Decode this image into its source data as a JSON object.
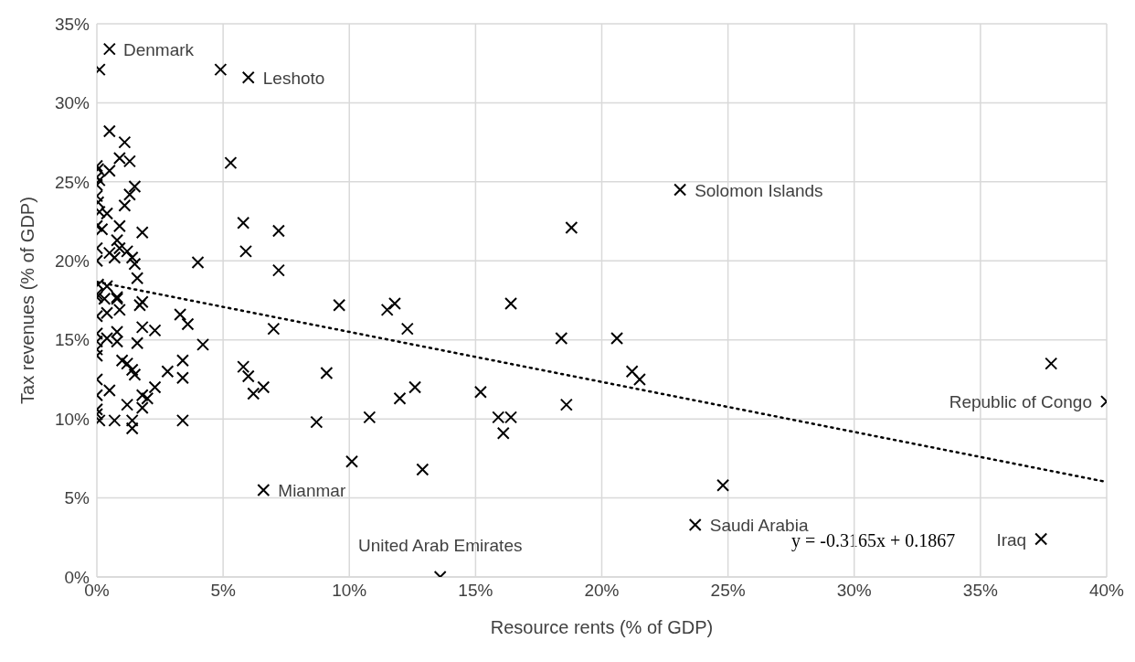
{
  "chart_data": {
    "type": "scatter",
    "xlabel": "Resource rents (% of GDP)",
    "ylabel": "Tax revenues (% of GDP)",
    "xlim": [
      0,
      40
    ],
    "ylim": [
      0,
      35
    ],
    "xticks": [
      {
        "value": 0,
        "label": "0%"
      },
      {
        "value": 5,
        "label": "5%"
      },
      {
        "value": 10,
        "label": "10%"
      },
      {
        "value": 15,
        "label": "15%"
      },
      {
        "value": 20,
        "label": "20%"
      },
      {
        "value": 25,
        "label": "25%"
      },
      {
        "value": 30,
        "label": "30%"
      },
      {
        "value": 35,
        "label": "35%"
      },
      {
        "value": 40,
        "label": "40%"
      }
    ],
    "yticks": [
      {
        "value": 0,
        "label": "0%"
      },
      {
        "value": 5,
        "label": "5%"
      },
      {
        "value": 10,
        "label": "10%"
      },
      {
        "value": 15,
        "label": "15%"
      },
      {
        "value": 20,
        "label": "20%"
      },
      {
        "value": 25,
        "label": "25%"
      },
      {
        "value": 30,
        "label": "30%"
      },
      {
        "value": 35,
        "label": "35%"
      }
    ],
    "grid": true,
    "series": [
      {
        "color": "#000000",
        "marker": "cross",
        "x": [
          0.5,
          0.1,
          6.0,
          4.9,
          5.3,
          5.8,
          7.2,
          5.9,
          7.2,
          4.0,
          9.6,
          11.5,
          11.8,
          12.3,
          7.0,
          4.2,
          5.8,
          6.0,
          6.6,
          6.2,
          9.1,
          8.7,
          10.1,
          10.8,
          12.0,
          12.6,
          12.9,
          6.6,
          13.6,
          18.8,
          16.4,
          18.4,
          20.6,
          21.2,
          21.5,
          15.2,
          18.6,
          15.9,
          16.4,
          16.1,
          24.8,
          23.7,
          37.4,
          37.8,
          40,
          23.1,
          0.5,
          1.1,
          0.9,
          1.3,
          0,
          0.05,
          0.5,
          0,
          0.1,
          0,
          1.5,
          1.3,
          0,
          1.1,
          0.05,
          0.1,
          0.4,
          0,
          0.9,
          0.2,
          1.8,
          0.8,
          0,
          0.9,
          0.5,
          1.2,
          0.7,
          1.4,
          1.5,
          0,
          1.6,
          0.05,
          0.4,
          0,
          0.8,
          1.8,
          0.3,
          0,
          0.8,
          1.7,
          0.4,
          0.9,
          0,
          3.3,
          3.6,
          1.8,
          2.3,
          0.8,
          0,
          0.4,
          0.8,
          1.6,
          0,
          0,
          0,
          1.0,
          3.4,
          1.2,
          1.4,
          2.8,
          1.5,
          3.4,
          0,
          2.3,
          0.5,
          1.8,
          0,
          2.0,
          1.2,
          1.8,
          0,
          0,
          0.7,
          1.4,
          3.4,
          0.1,
          1.4
        ],
        "values": [
          33.4,
          32.1,
          31.6,
          32.1,
          26.2,
          22.4,
          21.9,
          20.6,
          19.4,
          19.9,
          17.2,
          16.9,
          17.3,
          15.7,
          15.7,
          14.7,
          13.3,
          12.7,
          12.0,
          11.6,
          12.9,
          9.8,
          7.3,
          10.1,
          11.3,
          12.0,
          6.8,
          5.5,
          0,
          22.1,
          17.3,
          15.1,
          15.1,
          13.0,
          12.5,
          11.7,
          10.9,
          10.1,
          10.1,
          9.1,
          5.8,
          3.3,
          2.4,
          13.5,
          11.1,
          24.5,
          28.2,
          27.5,
          26.5,
          26.3,
          26.0,
          25.8,
          25.7,
          25.3,
          25.1,
          24.8,
          24.7,
          24.2,
          24.1,
          23.5,
          23.7,
          23.1,
          23.0,
          22.2,
          22.2,
          22.0,
          21.8,
          21.3,
          20.8,
          20.8,
          20.5,
          20.6,
          20.2,
          20.2,
          19.8,
          20.0,
          18.9,
          18.5,
          18.4,
          17.9,
          17.7,
          17.4,
          17.6,
          17.7,
          17.6,
          17.2,
          16.7,
          16.9,
          16.5,
          16.6,
          16.0,
          15.8,
          15.6,
          15.5,
          15.4,
          15.1,
          14.9,
          14.8,
          14.9,
          14.4,
          14.0,
          13.7,
          13.7,
          13.5,
          13.1,
          13.0,
          12.8,
          12.6,
          12.5,
          12.0,
          11.8,
          11.5,
          11.5,
          11.3,
          10.9,
          10.7,
          10.6,
          10.3,
          9.9,
          9.9,
          9.9,
          9.9,
          9.4
        ]
      },
      {
        "type": "line",
        "color": "#000000",
        "line_style": "dotted",
        "x": [
          0,
          40
        ],
        "values": [
          18.67,
          6.01
        ]
      }
    ],
    "annotations": [
      {
        "text": "Denmark",
        "x": 0.47,
        "y": 33.4
      },
      {
        "text": "Leshoto",
        "x": 6.0,
        "y": 31.6
      },
      {
        "text": "Solomon Islands",
        "x": 23.1,
        "y": 24.5
      },
      {
        "text": "Mianmar",
        "x": 6.6,
        "y": 5.5
      },
      {
        "text": "United Arab Emirates",
        "x": 13.6,
        "y": 0
      },
      {
        "text": "Saudi Arabia",
        "x": 23.7,
        "y": 3.3
      },
      {
        "text": "Iraq",
        "x": 37.4,
        "y": 2.4
      },
      {
        "text": "Republic of Congo",
        "x": 40,
        "y": 11.1
      },
      "y = -0.3165x + 0.1867"
    ]
  }
}
